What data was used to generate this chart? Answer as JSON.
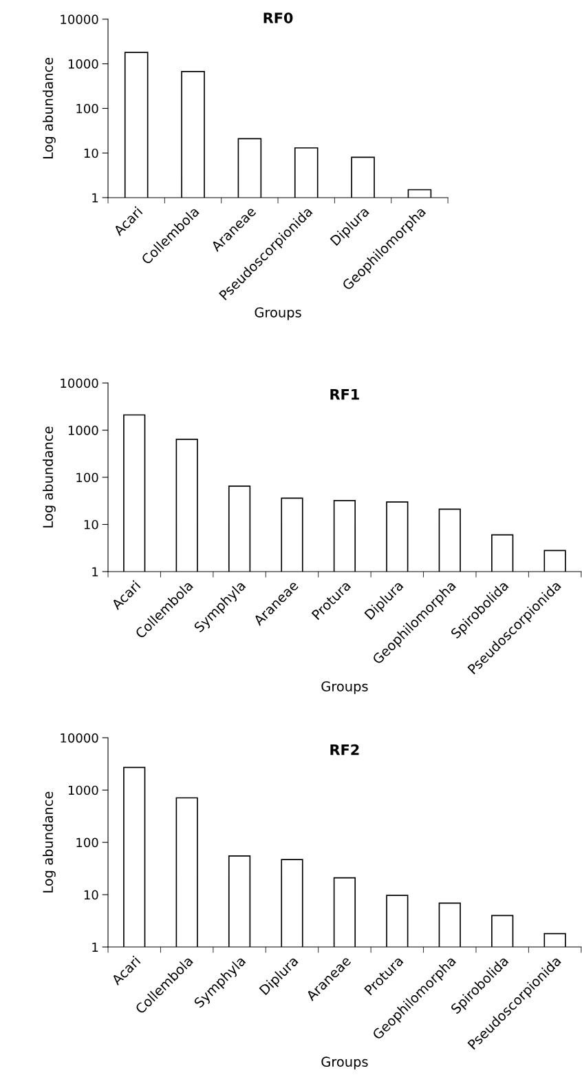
{
  "chart_data": [
    {
      "type": "bar",
      "title": "RF0",
      "xlabel": "Groups",
      "ylabel": "Log abundance",
      "log": "y",
      "ylim": [
        1,
        10000
      ],
      "yticks": [
        1,
        10,
        100,
        1000,
        10000
      ],
      "color": "#ffffff",
      "grid": false,
      "legend": false,
      "categories": [
        "Acari",
        "Collembola",
        "Araneae",
        "Pseudoscorpionida",
        "Diplura",
        "Geophilomorpha"
      ],
      "values": [
        1800,
        670,
        21,
        13,
        8,
        1.5
      ]
    },
    {
      "type": "bar",
      "title": "RF1",
      "xlabel": "Groups",
      "ylabel": "Log abundance",
      "log": "y",
      "ylim": [
        1,
        10000
      ],
      "yticks": [
        1,
        10,
        100,
        1000,
        10000
      ],
      "color": "#ffffff",
      "grid": false,
      "legend": false,
      "categories": [
        "Acari",
        "Collembola",
        "Symphyla",
        "Araneae",
        "Protura",
        "Diplura",
        "Geophilomorpha",
        "Spirobolida",
        "Pseudoscorpionida"
      ],
      "values": [
        2100,
        640,
        65,
        36,
        32,
        30,
        21,
        6,
        2.8
      ]
    },
    {
      "type": "bar",
      "title": "RF2",
      "xlabel": "Groups",
      "ylabel": "Log abundance",
      "log": "y",
      "ylim": [
        1,
        10000
      ],
      "yticks": [
        1,
        10,
        100,
        1000,
        10000
      ],
      "color": "#ffffff",
      "grid": false,
      "legend": false,
      "categories": [
        "Acari",
        "Collembola",
        "Symphyla",
        "Diplura",
        "Araneae",
        "Protura",
        "Geophilomorpha",
        "Spirobolida",
        "Pseudoscorpionida"
      ],
      "values": [
        2700,
        710,
        55,
        47,
        21,
        9.7,
        6.9,
        4,
        1.8
      ]
    }
  ]
}
